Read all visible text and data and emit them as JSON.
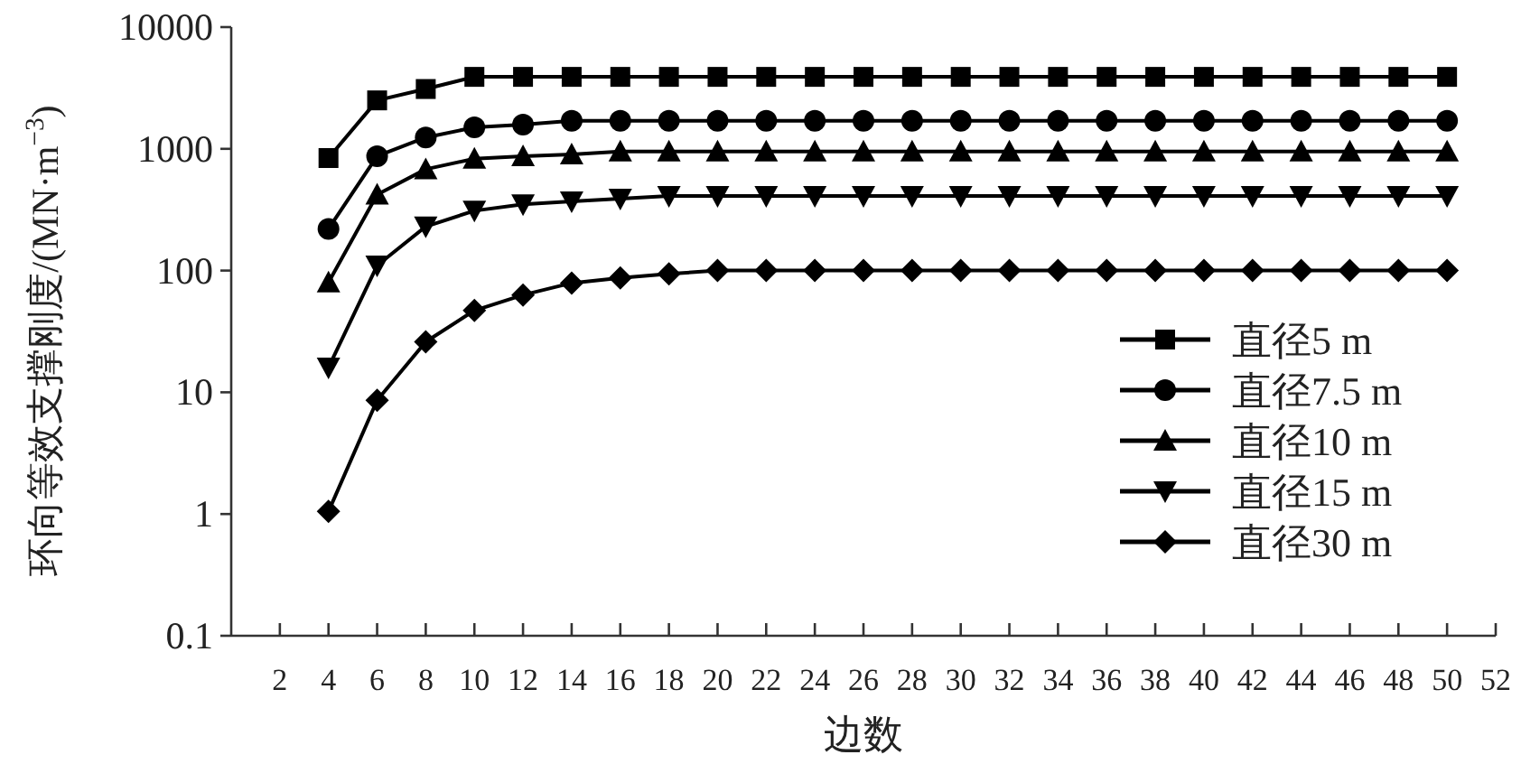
{
  "chart_data": {
    "type": "line",
    "xlabel": "边数",
    "ylabel": "环向等效支撑刚度/(MN·m$^{−3}$)",
    "log": "y",
    "x": [
      4,
      6,
      8,
      10,
      12,
      14,
      16,
      18,
      20,
      22,
      24,
      26,
      28,
      30,
      32,
      34,
      36,
      38,
      40,
      42,
      44,
      46,
      48,
      50
    ],
    "xlim": [
      0,
      52
    ],
    "xticks": [
      2,
      4,
      6,
      8,
      10,
      12,
      14,
      16,
      18,
      20,
      22,
      24,
      26,
      28,
      30,
      32,
      34,
      36,
      38,
      40,
      42,
      44,
      46,
      48,
      50,
      52
    ],
    "ylim": [
      0.1,
      10000
    ],
    "yticks": [
      0.1,
      1,
      10,
      100,
      1000,
      10000
    ],
    "grid": false,
    "legend": "right",
    "line_style": "solid",
    "series": [
      {
        "name": "直径5 m",
        "color": "#000000",
        "marker": "square",
        "values": [
          840,
          2500,
          3100,
          3900,
          3900,
          3900,
          3900,
          3900,
          3900,
          3900,
          3900,
          3900,
          3900,
          3900,
          3900,
          3900,
          3900,
          3900,
          3900,
          3900,
          3900,
          3900,
          3900,
          3900
        ]
      },
      {
        "name": "直径7.5 m",
        "color": "#000000",
        "marker": "circle",
        "values": [
          220,
          870,
          1240,
          1500,
          1580,
          1700,
          1700,
          1700,
          1700,
          1700,
          1700,
          1700,
          1700,
          1700,
          1700,
          1700,
          1700,
          1700,
          1700,
          1700,
          1700,
          1700,
          1700,
          1700
        ]
      },
      {
        "name": "直径10 m",
        "color": "#000000",
        "marker": "triangle",
        "values": [
          80,
          420,
          680,
          830,
          870,
          900,
          950,
          950,
          950,
          950,
          950,
          950,
          950,
          950,
          950,
          950,
          950,
          950,
          950,
          950,
          950,
          950,
          950,
          950
        ]
      },
      {
        "name": "直径15 m",
        "color": "#000000",
        "marker": "triangle-down",
        "values": [
          16,
          110,
          230,
          310,
          350,
          370,
          390,
          410,
          410,
          410,
          410,
          410,
          410,
          410,
          410,
          410,
          410,
          410,
          410,
          410,
          410,
          410,
          410,
          410
        ]
      },
      {
        "name": "直径30 m",
        "color": "#000000",
        "marker": "diamond",
        "values": [
          1.05,
          8.6,
          26,
          47,
          63,
          79,
          87,
          94,
          100,
          100,
          100,
          100,
          100,
          100,
          100,
          100,
          100,
          100,
          100,
          100,
          100,
          100,
          100,
          100
        ]
      }
    ]
  }
}
